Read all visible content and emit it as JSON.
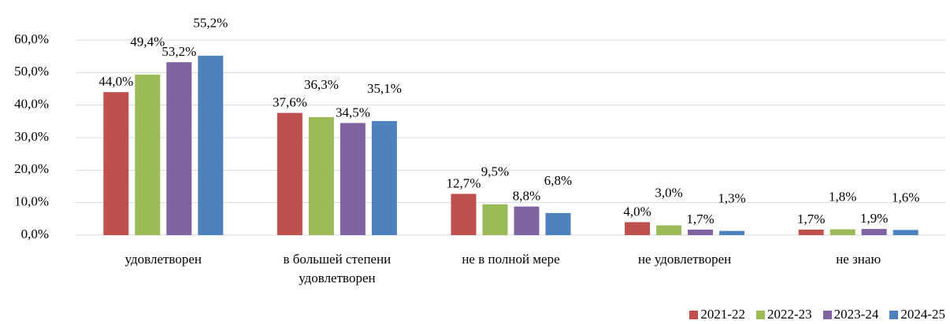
{
  "chart_data": {
    "type": "bar",
    "categories": [
      "удовлетворен",
      "в большей степени удовлетворен",
      "не в полной мере",
      "не удовлетворен",
      "не знаю"
    ],
    "series": [
      {
        "name": "2021-22",
        "color": "#c0504d",
        "values": [
          44.0,
          37.6,
          12.7,
          4.0,
          1.7
        ],
        "value_labels": [
          "44,0%",
          "37,6%",
          "12,7%",
          "4,0%",
          "1,7%"
        ]
      },
      {
        "name": "2022-23",
        "color": "#9bbb59",
        "values": [
          49.4,
          36.3,
          9.5,
          3.0,
          1.8
        ],
        "value_labels": [
          "49,4%",
          "36,3%",
          "9,5%",
          "3,0%",
          "1,8%"
        ]
      },
      {
        "name": "2023-24",
        "color": "#8064a2",
        "values": [
          53.2,
          34.5,
          8.8,
          1.7,
          1.9
        ],
        "value_labels": [
          "53,2%",
          "34,5%",
          "8,8%",
          "1,7%",
          "1,9%"
        ]
      },
      {
        "name": "2024-25",
        "color": "#4f81bd",
        "values": [
          55.2,
          35.1,
          6.8,
          1.3,
          1.6
        ],
        "value_labels": [
          "55,2%",
          "35,1%",
          "6,8%",
          "1,3%",
          "1,6%"
        ]
      }
    ],
    "ylim": [
      0,
      60
    ],
    "yticks": [
      {
        "value": 0,
        "label": "0,0%"
      },
      {
        "value": 10,
        "label": "10,0%"
      },
      {
        "value": 20,
        "label": "20,0%"
      },
      {
        "value": 30,
        "label": "30,0%"
      },
      {
        "value": 40,
        "label": "40,0%"
      },
      {
        "value": 50,
        "label": "50,0%"
      },
      {
        "value": 60,
        "label": "60,0%"
      }
    ],
    "grid": true,
    "legend": "bottom-right"
  }
}
